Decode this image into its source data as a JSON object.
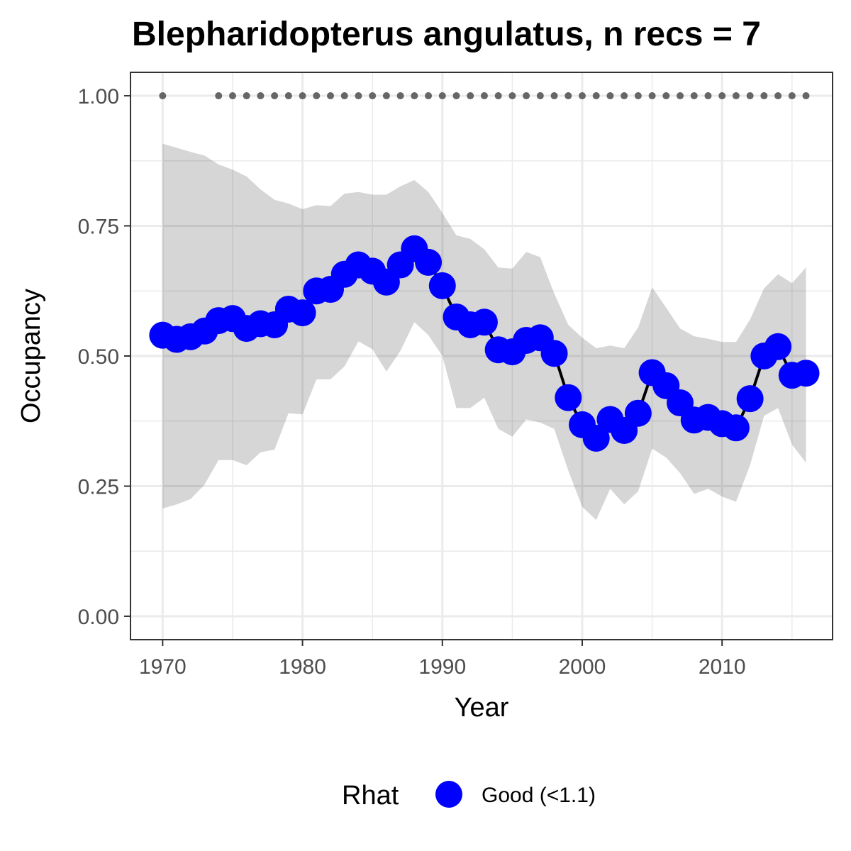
{
  "chart_data": {
    "type": "line",
    "title": "Blepharidopterus angulatus, n recs = 7",
    "xlabel": "Year",
    "ylabel": "Occupancy",
    "xlim": [
      1967.7,
      2017.9
    ],
    "ylim": [
      -0.045,
      1.045
    ],
    "x_ticks": [
      1970,
      1980,
      1990,
      2000,
      2010
    ],
    "x_tick_labels": [
      "1970",
      "1980",
      "1990",
      "2000",
      "2010"
    ],
    "x_minor_ticks": [
      1975,
      1985,
      1995,
      2005,
      2015
    ],
    "y_ticks": [
      0,
      0.25,
      0.5,
      0.75,
      1.0
    ],
    "y_tick_labels": [
      "0.00",
      "0.25",
      "0.50",
      "0.75",
      "1.00"
    ],
    "y_minor_ticks": [
      0.125,
      0.375,
      0.625,
      0.875
    ],
    "grid": true,
    "legend": {
      "title": "Rhat",
      "position": "bottom",
      "entries": [
        {
          "label": "Good (<1.1)",
          "color": "#0000ff"
        }
      ]
    },
    "colors": {
      "points": "#0000ff",
      "line": "#000000",
      "ribbon": "#d9d9d9",
      "data_years": "#666666",
      "grid": "#ebebeb",
      "panel_border": "#333333"
    },
    "series": [
      {
        "name": "Occupancy (mean)",
        "x": [
          1970,
          1971,
          1972,
          1973,
          1974,
          1975,
          1976,
          1977,
          1978,
          1979,
          1980,
          1981,
          1982,
          1983,
          1984,
          1985,
          1986,
          1987,
          1988,
          1989,
          1990,
          1991,
          1992,
          1993,
          1994,
          1995,
          1996,
          1997,
          1998,
          1999,
          2000,
          2001,
          2002,
          2003,
          2004,
          2005,
          2006,
          2007,
          2008,
          2009,
          2010,
          2011,
          2012,
          2013,
          2014,
          2015,
          2016
        ],
        "values": [
          0.54,
          0.532,
          0.537,
          0.548,
          0.568,
          0.572,
          0.553,
          0.562,
          0.56,
          0.59,
          0.583,
          0.625,
          0.628,
          0.657,
          0.675,
          0.663,
          0.642,
          0.675,
          0.706,
          0.68,
          0.635,
          0.575,
          0.56,
          0.565,
          0.512,
          0.508,
          0.53,
          0.535,
          0.505,
          0.42,
          0.368,
          0.342,
          0.378,
          0.357,
          0.39,
          0.468,
          0.443,
          0.41,
          0.377,
          0.382,
          0.37,
          0.362,
          0.418,
          0.5,
          0.518,
          0.463,
          0.467
        ]
      },
      {
        "name": "Credible interval upper",
        "x": [
          1970,
          1971,
          1972,
          1973,
          1974,
          1975,
          1976,
          1977,
          1978,
          1979,
          1980,
          1981,
          1982,
          1983,
          1984,
          1985,
          1986,
          1987,
          1988,
          1989,
          1990,
          1991,
          1992,
          1993,
          1994,
          1995,
          1996,
          1997,
          1998,
          1999,
          2000,
          2001,
          2002,
          2003,
          2004,
          2005,
          2006,
          2007,
          2008,
          2009,
          2010,
          2011,
          2012,
          2013,
          2014,
          2015,
          2016
        ],
        "values": [
          0.908,
          0.9,
          0.892,
          0.885,
          0.868,
          0.858,
          0.845,
          0.82,
          0.8,
          0.793,
          0.782,
          0.79,
          0.788,
          0.812,
          0.815,
          0.81,
          0.81,
          0.826,
          0.838,
          0.815,
          0.775,
          0.732,
          0.725,
          0.705,
          0.67,
          0.668,
          0.7,
          0.69,
          0.62,
          0.56,
          0.535,
          0.515,
          0.52,
          0.515,
          0.555,
          0.632,
          0.593,
          0.553,
          0.538,
          0.533,
          0.527,
          0.527,
          0.57,
          0.63,
          0.657,
          0.64,
          0.67
        ]
      },
      {
        "name": "Credible interval lower",
        "x": [
          1970,
          1971,
          1972,
          1973,
          1974,
          1975,
          1976,
          1977,
          1978,
          1979,
          1980,
          1981,
          1982,
          1983,
          1984,
          1985,
          1986,
          1987,
          1988,
          1989,
          1990,
          1991,
          1992,
          1993,
          1994,
          1995,
          1996,
          1997,
          1998,
          1999,
          2000,
          2001,
          2002,
          2003,
          2004,
          2005,
          2006,
          2007,
          2008,
          2009,
          2010,
          2011,
          2012,
          2013,
          2014,
          2015,
          2016
        ],
        "values": [
          0.207,
          0.215,
          0.225,
          0.253,
          0.3,
          0.3,
          0.29,
          0.315,
          0.32,
          0.39,
          0.388,
          0.455,
          0.455,
          0.48,
          0.528,
          0.513,
          0.47,
          0.51,
          0.565,
          0.54,
          0.5,
          0.4,
          0.4,
          0.42,
          0.36,
          0.345,
          0.378,
          0.372,
          0.36,
          0.28,
          0.21,
          0.185,
          0.245,
          0.215,
          0.24,
          0.322,
          0.305,
          0.275,
          0.235,
          0.245,
          0.23,
          0.22,
          0.29,
          0.385,
          0.4,
          0.33,
          0.295
        ]
      },
      {
        "name": "Years with records",
        "x": [
          1970,
          1974,
          1975,
          1976,
          1977,
          1978,
          1979,
          1980,
          1981,
          1982,
          1983,
          1984,
          1985,
          1986,
          1987,
          1988,
          1989,
          1990,
          1991,
          1992,
          1993,
          1994,
          1995,
          1996,
          1997,
          1998,
          1999,
          2000,
          2001,
          2002,
          2003,
          2004,
          2005,
          2006,
          2007,
          2008,
          2009,
          2010,
          2011,
          2012,
          2013,
          2014,
          2015,
          2016
        ],
        "values": [
          1,
          1,
          1,
          1,
          1,
          1,
          1,
          1,
          1,
          1,
          1,
          1,
          1,
          1,
          1,
          1,
          1,
          1,
          1,
          1,
          1,
          1,
          1,
          1,
          1,
          1,
          1,
          1,
          1,
          1,
          1,
          1,
          1,
          1,
          1,
          1,
          1,
          1,
          1,
          1,
          1,
          1,
          1,
          1
        ]
      }
    ]
  }
}
